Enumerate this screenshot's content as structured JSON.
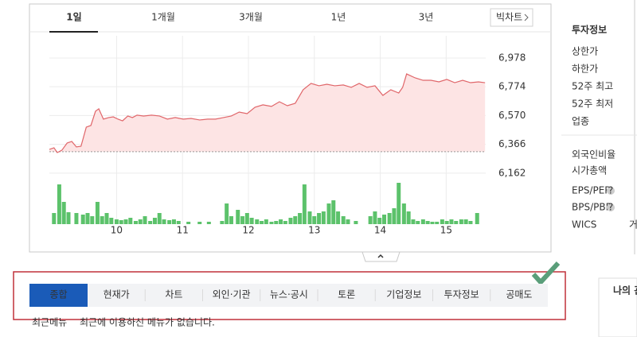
{
  "period_tabs": [
    "1일",
    "1개월",
    "3개월",
    "1년",
    "3년"
  ],
  "selected_period": 0,
  "big_chart_button": "빅차트",
  "chart_data": {
    "type": "line",
    "x": [
      8.98,
      9.05,
      9.1,
      9.17,
      9.25,
      9.32,
      9.39,
      9.46,
      9.54,
      9.61,
      9.68,
      9.73,
      9.8,
      9.88,
      9.95,
      10.02,
      10.09,
      10.17,
      10.24,
      10.31,
      10.41,
      10.53,
      10.65,
      10.77,
      10.89,
      11.01,
      11.13,
      11.26,
      11.38,
      11.5,
      11.62,
      11.74,
      11.86,
      11.98,
      12.1,
      12.22,
      12.35,
      12.47,
      12.59,
      12.71,
      12.83,
      12.95,
      13.07,
      13.19,
      13.31,
      13.44,
      13.56,
      13.68,
      13.8,
      13.92,
      14.04,
      14.16,
      14.28,
      14.34,
      14.4,
      14.53,
      14.65,
      14.77,
      14.89,
      15.01,
      15.13,
      15.25,
      15.37,
      15.49,
      15.59
    ],
    "values": [
      6331,
      6342,
      6308,
      6325,
      6376,
      6387,
      6348,
      6353,
      6488,
      6500,
      6601,
      6618,
      6545,
      6556,
      6561,
      6545,
      6533,
      6567,
      6556,
      6573,
      6567,
      6573,
      6567,
      6545,
      6556,
      6545,
      6550,
      6539,
      6545,
      6545,
      6556,
      6567,
      6595,
      6584,
      6629,
      6646,
      6635,
      6668,
      6640,
      6657,
      6753,
      6798,
      6781,
      6792,
      6781,
      6787,
      6770,
      6798,
      6770,
      6781,
      6713,
      6753,
      6730,
      6770,
      6865,
      6837,
      6820,
      6820,
      6809,
      6826,
      6803,
      6820,
      6803,
      6809,
      6803
    ],
    "color": "#e0666a",
    "fill": "#fde4e4",
    "prev_close": 6314,
    "xlim": [
      8.98,
      15.6
    ],
    "xticks": [
      10,
      11,
      12,
      13,
      14,
      15
    ],
    "ylim": [
      6139,
      7079
    ],
    "yticks": [
      {
        "value": 6978,
        "label": "6,978"
      },
      {
        "value": 6774,
        "label": "6,774"
      },
      {
        "value": 6570,
        "label": "6,570"
      },
      {
        "value": 6366,
        "label": "6,366"
      },
      {
        "value": 6162,
        "label": "6,162"
      }
    ],
    "grid": true,
    "volume": {
      "color": "#5cc26b",
      "ylim": [
        0,
        108
      ],
      "x": [
        9.05,
        9.13,
        9.2,
        9.27,
        9.39,
        9.49,
        9.56,
        9.63,
        9.71,
        9.78,
        9.85,
        9.92,
        10.0,
        10.07,
        10.14,
        10.21,
        10.29,
        10.36,
        10.43,
        10.51,
        10.58,
        10.65,
        10.72,
        10.8,
        10.87,
        10.94,
        11.09,
        11.26,
        11.4,
        11.6,
        11.67,
        11.74,
        11.84,
        11.91,
        11.98,
        12.05,
        12.13,
        12.2,
        12.27,
        12.35,
        12.42,
        12.49,
        12.56,
        12.64,
        12.71,
        12.78,
        12.85,
        12.93,
        13.0,
        13.07,
        13.14,
        13.22,
        13.29,
        13.36,
        13.44,
        13.51,
        13.63,
        13.85,
        13.92,
        13.99,
        14.06,
        14.14,
        14.21,
        14.28,
        14.36,
        14.43,
        14.5,
        14.57,
        14.65,
        14.72,
        14.79,
        14.86,
        14.94,
        15.01,
        15.08,
        15.15,
        15.23,
        15.3,
        15.37,
        15.47
      ],
      "values": [
        28,
        100,
        56,
        30,
        28,
        24,
        28,
        20,
        56,
        20,
        28,
        16,
        12,
        10,
        12,
        16,
        8,
        12,
        20,
        8,
        16,
        28,
        12,
        10,
        12,
        8,
        6,
        6,
        6,
        8,
        52,
        20,
        36,
        20,
        28,
        16,
        12,
        8,
        12,
        6,
        8,
        12,
        8,
        16,
        20,
        28,
        100,
        32,
        20,
        28,
        32,
        52,
        60,
        32,
        20,
        12,
        8,
        20,
        32,
        16,
        24,
        28,
        40,
        104,
        52,
        32,
        12,
        8,
        12,
        8,
        6,
        6,
        12,
        8,
        12,
        8,
        12,
        12,
        8,
        28
      ]
    }
  },
  "info_panel": {
    "title": "투자정보",
    "items": [
      "상한가",
      "하한가",
      "52주 최고",
      "52주 최저",
      "업종"
    ],
    "items2": [
      "외국인비율",
      "시가총액",
      "EPS/PER",
      "BPS/PBR",
      "WICS"
    ],
    "help": "?",
    "cutoff": "거"
  },
  "menu": {
    "tabs": [
      "종합",
      "현재가",
      "차트",
      "외인·기관",
      "뉴스·공시",
      "토론",
      "기업정보",
      "투자정보",
      "공매도"
    ],
    "selected": 0
  },
  "recent_menu": {
    "label": "최근메뉴",
    "text": "최근에 이용하신 메뉴가 없습니다."
  },
  "side_box": "나의 관"
}
